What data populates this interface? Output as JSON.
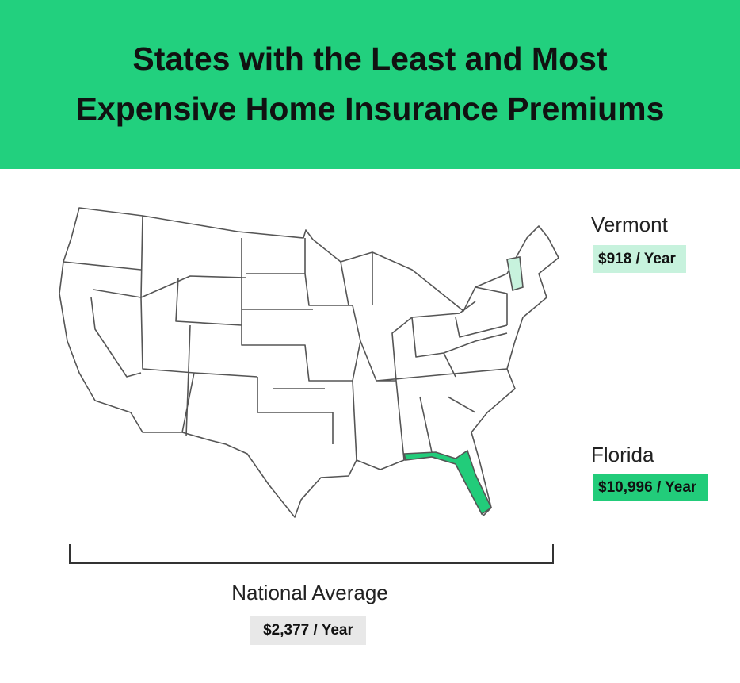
{
  "header": {
    "title": [
      "States with the Least and Most",
      "Expensive Home Insurance Premiums"
    ]
  },
  "states": [
    {
      "name": "Vermont",
      "premium": "$918 / Year"
    },
    {
      "name": "Florida",
      "premium": "$10,996 / Year"
    }
  ],
  "national_average": {
    "label": "National Average",
    "premium": "$2,377 / Year"
  }
}
